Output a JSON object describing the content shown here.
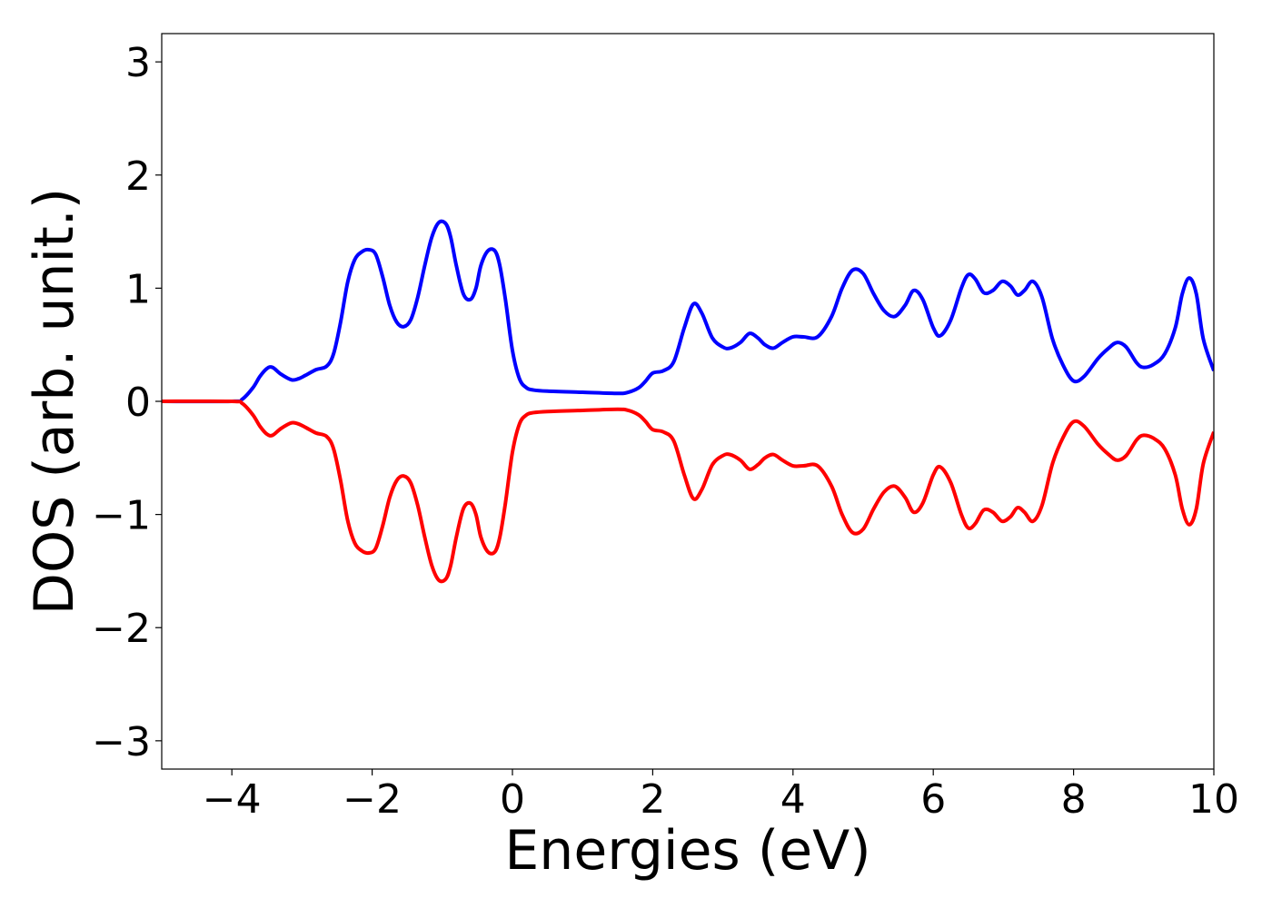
{
  "chart_data": {
    "type": "line",
    "title": "",
    "xlabel": "Energies (eV)",
    "ylabel": "DOS (arb. unit.)",
    "xlim": [
      -5,
      10
    ],
    "ylim": [
      -3.25,
      3.25
    ],
    "xticks": [
      -4,
      -2,
      0,
      2,
      4,
      6,
      8,
      10
    ],
    "yticks": [
      -3,
      -2,
      -1,
      0,
      1,
      2,
      3
    ],
    "xtick_labels": [
      "−4",
      "−2",
      "0",
      "2",
      "4",
      "6",
      "8",
      "10"
    ],
    "ytick_labels": [
      "−3",
      "−2",
      "−1",
      "0",
      "1",
      "2",
      "3"
    ],
    "grid": false,
    "legend": "none",
    "series": [
      {
        "color": "#0000ff",
        "x": [
          -5.0,
          -4.0,
          -3.85,
          -3.7,
          -3.6,
          -3.5,
          -3.42,
          -3.3,
          -3.15,
          -3.05,
          -2.95,
          -2.8,
          -2.65,
          -2.55,
          -2.45,
          -2.35,
          -2.25,
          -2.15,
          -2.05,
          -1.95,
          -1.85,
          -1.75,
          -1.65,
          -1.55,
          -1.45,
          -1.35,
          -1.25,
          -1.15,
          -1.05,
          -0.95,
          -0.88,
          -0.8,
          -0.7,
          -0.6,
          -0.52,
          -0.45,
          -0.35,
          -0.25,
          -0.18,
          -0.1,
          0.0,
          0.1,
          0.2,
          0.3,
          0.5,
          1.0,
          1.5,
          1.65,
          1.8,
          1.9,
          2.0,
          2.15,
          2.3,
          2.45,
          2.58,
          2.7,
          2.85,
          3.0,
          3.1,
          3.25,
          3.38,
          3.5,
          3.6,
          3.72,
          3.85,
          4.0,
          4.15,
          4.35,
          4.55,
          4.7,
          4.85,
          5.0,
          5.15,
          5.3,
          5.45,
          5.6,
          5.72,
          5.85,
          6.0,
          6.1,
          6.25,
          6.4,
          6.5,
          6.6,
          6.72,
          6.85,
          6.98,
          7.1,
          7.2,
          7.3,
          7.42,
          7.55,
          7.7,
          7.85,
          8.0,
          8.15,
          8.35,
          8.5,
          8.62,
          8.75,
          8.9,
          9.0,
          9.15,
          9.3,
          9.45,
          9.55,
          9.65,
          9.75,
          9.85,
          10.0
        ],
        "y": [
          0.0,
          0.0,
          0.02,
          0.12,
          0.22,
          0.29,
          0.3,
          0.24,
          0.19,
          0.2,
          0.23,
          0.28,
          0.31,
          0.42,
          0.7,
          1.05,
          1.25,
          1.32,
          1.34,
          1.3,
          1.1,
          0.85,
          0.7,
          0.66,
          0.72,
          0.92,
          1.2,
          1.45,
          1.58,
          1.57,
          1.45,
          1.2,
          0.95,
          0.9,
          1.0,
          1.2,
          1.33,
          1.33,
          1.2,
          0.9,
          0.45,
          0.2,
          0.12,
          0.1,
          0.09,
          0.08,
          0.07,
          0.08,
          0.12,
          0.18,
          0.25,
          0.27,
          0.35,
          0.65,
          0.86,
          0.78,
          0.56,
          0.48,
          0.47,
          0.52,
          0.6,
          0.56,
          0.5,
          0.47,
          0.52,
          0.57,
          0.57,
          0.57,
          0.75,
          1.0,
          1.16,
          1.13,
          0.95,
          0.8,
          0.75,
          0.85,
          0.98,
          0.9,
          0.65,
          0.58,
          0.72,
          1.0,
          1.12,
          1.08,
          0.96,
          0.98,
          1.06,
          1.02,
          0.94,
          0.98,
          1.06,
          0.92,
          0.55,
          0.32,
          0.18,
          0.22,
          0.38,
          0.47,
          0.52,
          0.48,
          0.34,
          0.3,
          0.33,
          0.42,
          0.65,
          0.95,
          1.09,
          0.95,
          0.55,
          0.27
        ]
      },
      {
        "color": "#ff0000",
        "x": [
          -5.0,
          -4.0,
          -3.85,
          -3.7,
          -3.6,
          -3.5,
          -3.42,
          -3.3,
          -3.15,
          -3.05,
          -2.95,
          -2.8,
          -2.65,
          -2.55,
          -2.45,
          -2.35,
          -2.25,
          -2.15,
          -2.05,
          -1.95,
          -1.85,
          -1.75,
          -1.65,
          -1.55,
          -1.45,
          -1.35,
          -1.25,
          -1.15,
          -1.05,
          -0.95,
          -0.88,
          -0.8,
          -0.7,
          -0.6,
          -0.52,
          -0.45,
          -0.35,
          -0.25,
          -0.18,
          -0.1,
          0.0,
          0.1,
          0.2,
          0.3,
          0.5,
          1.0,
          1.5,
          1.65,
          1.8,
          1.9,
          2.0,
          2.15,
          2.3,
          2.45,
          2.58,
          2.7,
          2.85,
          3.0,
          3.1,
          3.25,
          3.38,
          3.5,
          3.6,
          3.72,
          3.85,
          4.0,
          4.15,
          4.35,
          4.55,
          4.7,
          4.85,
          5.0,
          5.15,
          5.3,
          5.45,
          5.6,
          5.72,
          5.85,
          6.0,
          6.1,
          6.25,
          6.4,
          6.5,
          6.6,
          6.72,
          6.85,
          6.98,
          7.1,
          7.2,
          7.3,
          7.42,
          7.55,
          7.7,
          7.85,
          8.0,
          8.15,
          8.35,
          8.5,
          8.62,
          8.75,
          8.9,
          9.0,
          9.15,
          9.3,
          9.45,
          9.55,
          9.65,
          9.75,
          9.85,
          10.0
        ],
        "y": [
          0.0,
          0.0,
          -0.02,
          -0.12,
          -0.22,
          -0.29,
          -0.3,
          -0.24,
          -0.19,
          -0.2,
          -0.23,
          -0.28,
          -0.31,
          -0.42,
          -0.7,
          -1.05,
          -1.25,
          -1.32,
          -1.34,
          -1.3,
          -1.1,
          -0.85,
          -0.7,
          -0.66,
          -0.72,
          -0.92,
          -1.2,
          -1.45,
          -1.58,
          -1.57,
          -1.45,
          -1.2,
          -0.95,
          -0.9,
          -1.0,
          -1.2,
          -1.33,
          -1.33,
          -1.2,
          -0.9,
          -0.45,
          -0.2,
          -0.12,
          -0.1,
          -0.09,
          -0.08,
          -0.07,
          -0.08,
          -0.12,
          -0.18,
          -0.25,
          -0.27,
          -0.35,
          -0.65,
          -0.86,
          -0.78,
          -0.56,
          -0.48,
          -0.47,
          -0.52,
          -0.6,
          -0.56,
          -0.5,
          -0.47,
          -0.52,
          -0.57,
          -0.57,
          -0.57,
          -0.75,
          -1.0,
          -1.16,
          -1.13,
          -0.95,
          -0.8,
          -0.75,
          -0.85,
          -0.98,
          -0.9,
          -0.65,
          -0.58,
          -0.72,
          -1.0,
          -1.12,
          -1.08,
          -0.96,
          -0.98,
          -1.06,
          -1.02,
          -0.94,
          -0.98,
          -1.06,
          -0.92,
          -0.55,
          -0.32,
          -0.18,
          -0.22,
          -0.38,
          -0.47,
          -0.52,
          -0.48,
          -0.34,
          -0.3,
          -0.33,
          -0.42,
          -0.65,
          -0.95,
          -1.09,
          -0.95,
          -0.55,
          -0.27
        ]
      }
    ]
  }
}
